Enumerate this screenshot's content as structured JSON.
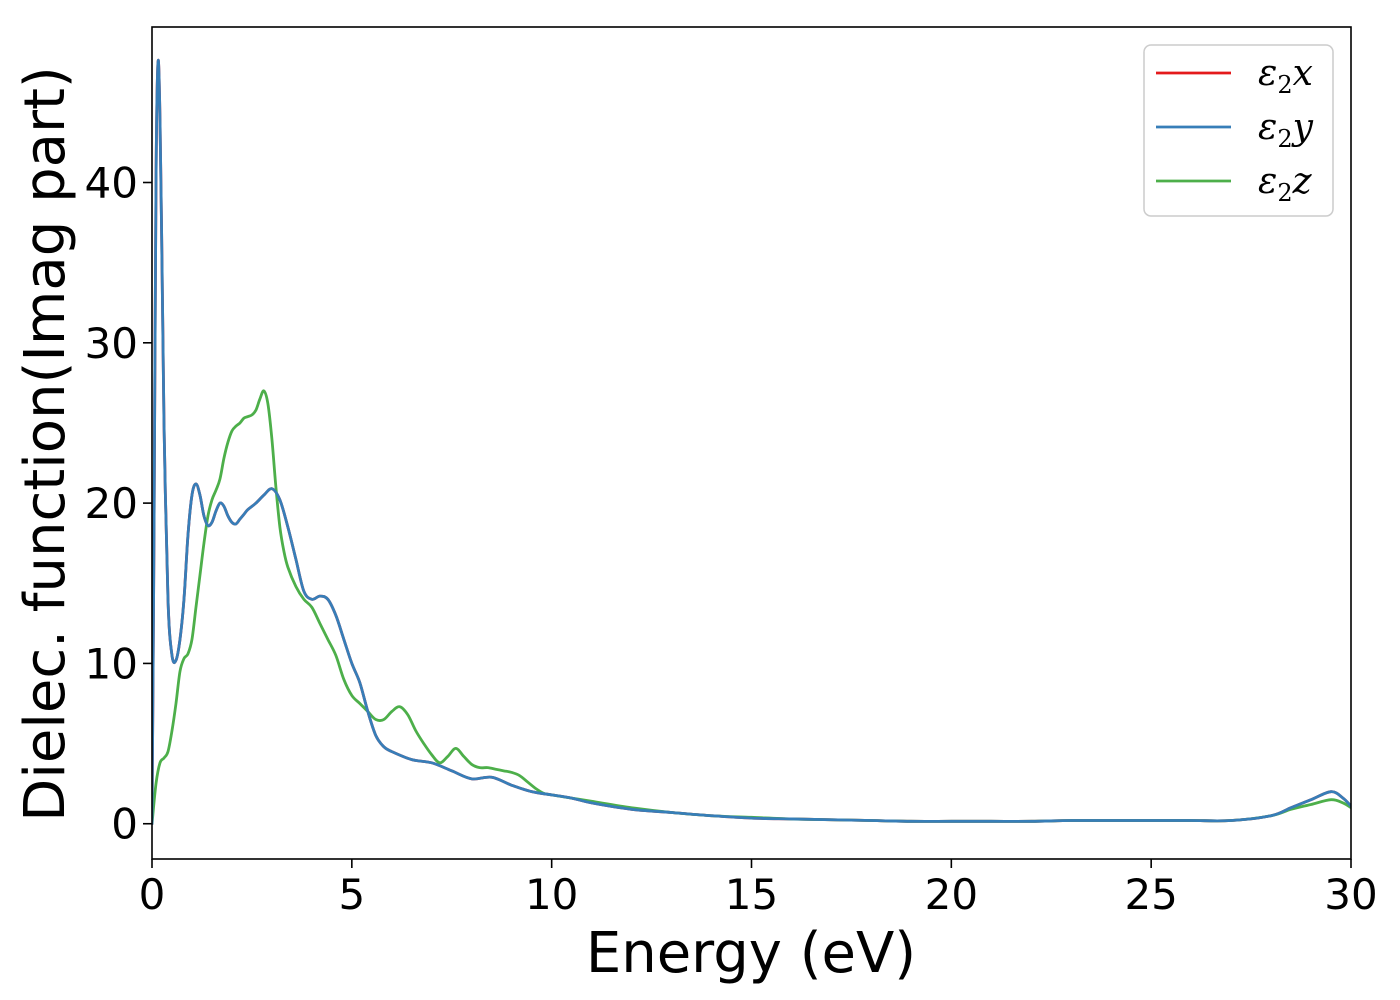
{
  "chart_data": {
    "type": "line",
    "title": "",
    "xlabel": "Energy (eV)",
    "ylabel": "Dielec. function(Imag part)",
    "xlim": [
      0,
      30
    ],
    "ylim": [
      -2.2,
      49.7
    ],
    "xticks": [
      0,
      5,
      10,
      15,
      20,
      25,
      30
    ],
    "yticks": [
      0,
      10,
      20,
      30,
      40
    ],
    "xtick_labels": [
      "0",
      "5",
      "10",
      "15",
      "20",
      "25",
      "30"
    ],
    "ytick_labels": [
      "0",
      "10",
      "20",
      "30",
      "40"
    ],
    "grid": false,
    "legend_position": "top-right",
    "series": [
      {
        "name": "x",
        "label_symbol": "ε",
        "label_sub": "2",
        "color": "#e41a1c",
        "x": [
          0,
          0.05,
          0.1,
          0.15,
          0.2,
          0.25,
          0.3,
          0.4,
          0.5,
          0.6,
          0.7,
          0.8,
          0.9,
          1.0,
          1.1,
          1.2,
          1.3,
          1.4,
          1.5,
          1.6,
          1.7,
          1.8,
          1.9,
          2.0,
          2.1,
          2.2,
          2.3,
          2.4,
          2.6,
          2.8,
          3.0,
          3.2,
          3.4,
          3.6,
          3.8,
          4.0,
          4.2,
          4.4,
          4.6,
          4.8,
          5.0,
          5.2,
          5.4,
          5.6,
          5.8,
          6.0,
          6.5,
          7.0,
          7.5,
          8.0,
          8.5,
          9.0,
          9.5,
          10.0,
          10.5,
          11.0,
          12.0,
          13.0,
          14.0,
          15.0,
          16.0,
          17.0,
          18.0,
          19.0,
          20.0,
          21.0,
          22.0,
          23.0,
          24.0,
          25.0,
          26.0,
          27.0,
          28.0,
          28.5,
          29.0,
          29.5,
          29.8,
          30.0
        ],
        "y": [
          0,
          18,
          40,
          47.5,
          44,
          35,
          25,
          14,
          10.5,
          10.2,
          11.5,
          14,
          18,
          20.5,
          21.2,
          20.5,
          19.2,
          18.6,
          18.8,
          19.5,
          20.0,
          19.8,
          19.2,
          18.8,
          18.7,
          19.0,
          19.3,
          19.6,
          20.0,
          20.5,
          20.9,
          20.2,
          18.5,
          16.5,
          14.5,
          14.0,
          14.2,
          14.0,
          13.0,
          11.5,
          10.0,
          8.8,
          7.0,
          5.5,
          4.8,
          4.5,
          4.0,
          3.8,
          3.3,
          2.8,
          2.9,
          2.4,
          2.0,
          1.8,
          1.6,
          1.3,
          0.9,
          0.7,
          0.5,
          0.35,
          0.3,
          0.25,
          0.2,
          0.15,
          0.15,
          0.15,
          0.15,
          0.2,
          0.2,
          0.2,
          0.2,
          0.2,
          0.5,
          1.0,
          1.5,
          2.0,
          1.6,
          1.1
        ]
      },
      {
        "name": "y",
        "label_symbol": "ε",
        "label_sub": "2",
        "color": "#377eb8",
        "x": [
          0,
          0.05,
          0.1,
          0.15,
          0.2,
          0.25,
          0.3,
          0.4,
          0.5,
          0.6,
          0.7,
          0.8,
          0.9,
          1.0,
          1.1,
          1.2,
          1.3,
          1.4,
          1.5,
          1.6,
          1.7,
          1.8,
          1.9,
          2.0,
          2.1,
          2.2,
          2.3,
          2.4,
          2.6,
          2.8,
          3.0,
          3.2,
          3.4,
          3.6,
          3.8,
          4.0,
          4.2,
          4.4,
          4.6,
          4.8,
          5.0,
          5.2,
          5.4,
          5.6,
          5.8,
          6.0,
          6.5,
          7.0,
          7.5,
          8.0,
          8.5,
          9.0,
          9.5,
          10.0,
          10.5,
          11.0,
          12.0,
          13.0,
          14.0,
          15.0,
          16.0,
          17.0,
          18.0,
          19.0,
          20.0,
          21.0,
          22.0,
          23.0,
          24.0,
          25.0,
          26.0,
          27.0,
          28.0,
          28.5,
          29.0,
          29.5,
          29.8,
          30.0
        ],
        "y": [
          0,
          18,
          40,
          47.5,
          44,
          35,
          25,
          14,
          10.5,
          10.2,
          11.5,
          14,
          18,
          20.5,
          21.2,
          20.5,
          19.2,
          18.6,
          18.8,
          19.5,
          20.0,
          19.8,
          19.2,
          18.8,
          18.7,
          19.0,
          19.3,
          19.6,
          20.0,
          20.5,
          20.9,
          20.2,
          18.5,
          16.5,
          14.5,
          14.0,
          14.2,
          14.0,
          13.0,
          11.5,
          10.0,
          8.8,
          7.0,
          5.5,
          4.8,
          4.5,
          4.0,
          3.8,
          3.3,
          2.8,
          2.9,
          2.4,
          2.0,
          1.8,
          1.6,
          1.3,
          0.9,
          0.7,
          0.5,
          0.35,
          0.3,
          0.25,
          0.2,
          0.15,
          0.15,
          0.15,
          0.15,
          0.2,
          0.2,
          0.2,
          0.2,
          0.2,
          0.5,
          1.0,
          1.5,
          2.0,
          1.6,
          1.1
        ]
      },
      {
        "name": "z",
        "label_symbol": "ε",
        "label_sub": "2",
        "color": "#4daf4a",
        "x": [
          0,
          0.1,
          0.2,
          0.3,
          0.4,
          0.5,
          0.6,
          0.7,
          0.8,
          0.9,
          1.0,
          1.1,
          1.2,
          1.3,
          1.4,
          1.5,
          1.6,
          1.7,
          1.8,
          1.9,
          2.0,
          2.1,
          2.2,
          2.3,
          2.4,
          2.5,
          2.6,
          2.7,
          2.8,
          2.9,
          3.0,
          3.1,
          3.2,
          3.3,
          3.4,
          3.6,
          3.8,
          4.0,
          4.2,
          4.4,
          4.6,
          4.8,
          5.0,
          5.2,
          5.4,
          5.6,
          5.8,
          6.0,
          6.2,
          6.4,
          6.6,
          6.8,
          7.0,
          7.2,
          7.4,
          7.6,
          7.8,
          8.0,
          8.2,
          8.4,
          8.6,
          8.8,
          9.0,
          9.2,
          9.4,
          9.6,
          9.8,
          10.0,
          10.5,
          11.0,
          12.0,
          13.0,
          14.0,
          15.0,
          16.0,
          17.0,
          18.0,
          19.0,
          20.0,
          21.0,
          22.0,
          23.0,
          24.0,
          25.0,
          26.0,
          27.0,
          28.0,
          28.5,
          29.0,
          29.5,
          29.8,
          30.0
        ],
        "y": [
          0,
          2.5,
          3.8,
          4.1,
          4.5,
          5.8,
          7.5,
          9.5,
          10.3,
          10.6,
          11.5,
          13.5,
          15.5,
          17.5,
          19.2,
          20.2,
          20.8,
          21.5,
          22.8,
          23.8,
          24.5,
          24.8,
          25.0,
          25.3,
          25.4,
          25.5,
          25.8,
          26.5,
          27.0,
          26.2,
          24.0,
          21.0,
          18.5,
          17.0,
          16.0,
          14.8,
          14.0,
          13.5,
          12.5,
          11.5,
          10.5,
          9.0,
          8.0,
          7.5,
          7.0,
          6.5,
          6.5,
          7.0,
          7.3,
          6.8,
          5.8,
          5.0,
          4.3,
          3.8,
          4.2,
          4.7,
          4.2,
          3.7,
          3.5,
          3.5,
          3.4,
          3.3,
          3.2,
          3.0,
          2.6,
          2.2,
          1.9,
          1.8,
          1.6,
          1.4,
          1.0,
          0.7,
          0.5,
          0.4,
          0.3,
          0.25,
          0.2,
          0.15,
          0.15,
          0.15,
          0.15,
          0.2,
          0.2,
          0.2,
          0.2,
          0.2,
          0.5,
          0.9,
          1.2,
          1.5,
          1.3,
          1.0
        ]
      }
    ]
  }
}
